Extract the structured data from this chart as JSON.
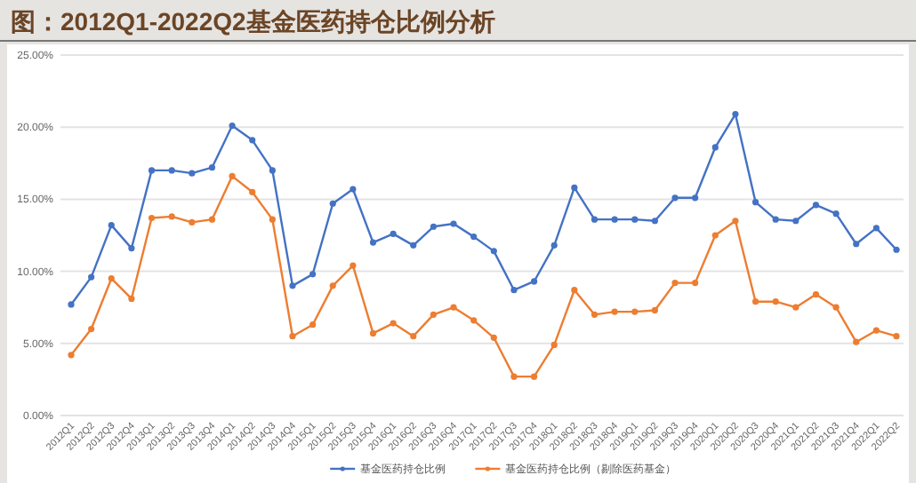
{
  "chart_data": {
    "type": "line",
    "title": "图：2012Q1-2022Q2基金医药持仓比例分析",
    "categories": [
      "2012Q1",
      "2012Q2",
      "2012Q3",
      "2012Q4",
      "2013Q1",
      "2013Q2",
      "2013Q3",
      "2013Q4",
      "2014Q1",
      "2014Q2",
      "2014Q3",
      "2014Q4",
      "2015Q1",
      "2015Q2",
      "2015Q3",
      "2015Q4",
      "2016Q1",
      "2016Q2",
      "2016Q3",
      "2016Q4",
      "2017Q1",
      "2017Q2",
      "2017Q3",
      "2017Q4",
      "2018Q1",
      "2018Q2",
      "2018Q3",
      "2018Q4",
      "2019Q1",
      "2019Q2",
      "2019Q3",
      "2019Q4",
      "2020Q1",
      "2020Q2",
      "2020Q3",
      "2020Q4",
      "2021Q1",
      "2021Q2",
      "2021Q3",
      "2021Q4",
      "2022Q1",
      "2022Q2"
    ],
    "series": [
      {
        "name": "基金医药持仓比例",
        "color": "#4472c4",
        "values": [
          7.7,
          9.6,
          13.2,
          11.6,
          17.0,
          17.0,
          16.8,
          17.2,
          20.1,
          19.1,
          17.0,
          9.0,
          9.8,
          14.7,
          15.7,
          12.0,
          12.6,
          11.8,
          13.1,
          13.3,
          12.4,
          11.4,
          8.7,
          9.3,
          11.8,
          15.8,
          13.6,
          13.6,
          13.6,
          13.5,
          15.1,
          15.1,
          18.6,
          20.9,
          14.8,
          13.6,
          13.5,
          14.6,
          14.0,
          11.9,
          13.0,
          11.5
        ]
      },
      {
        "name": "基金医药持仓比例（剔除医药基金）",
        "color": "#ed7d31",
        "values": [
          4.2,
          6.0,
          9.5,
          8.1,
          13.7,
          13.8,
          13.4,
          13.6,
          16.6,
          15.5,
          13.6,
          5.5,
          6.3,
          9.0,
          10.4,
          5.7,
          6.4,
          5.5,
          7.0,
          7.5,
          6.6,
          5.4,
          2.7,
          2.7,
          4.9,
          8.7,
          7.0,
          7.2,
          7.2,
          7.3,
          9.2,
          9.2,
          12.5,
          13.5,
          7.9,
          7.9,
          7.5,
          8.4,
          7.5,
          5.1,
          5.9,
          5.5
        ]
      }
    ],
    "ylim": [
      0,
      25
    ],
    "yticks": [
      {
        "value": 0,
        "label": "0.00%"
      },
      {
        "value": 5,
        "label": "5.00%"
      },
      {
        "value": 10,
        "label": "10.00%"
      },
      {
        "value": 15,
        "label": "15.00%"
      },
      {
        "value": 20,
        "label": "20.00%"
      },
      {
        "value": 25,
        "label": "25.00%"
      }
    ],
    "grid": "y",
    "legend": "bottom",
    "marker": "circle",
    "line_style": "solid"
  }
}
